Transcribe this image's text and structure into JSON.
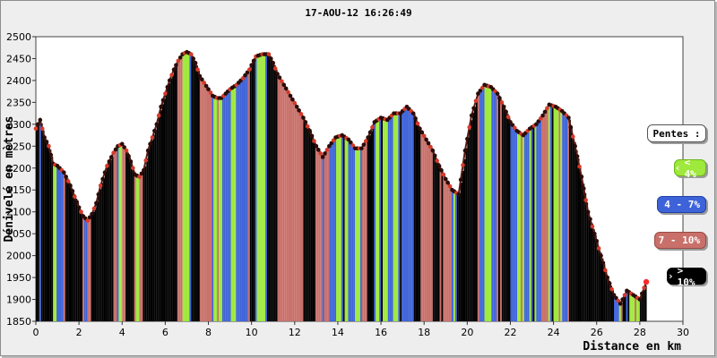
{
  "chart_data": {
    "type": "area",
    "title": "17-AOU-12 16:26:49",
    "xlabel": "Distance en km",
    "ylabel": "Dénivelé en mètres",
    "xlim": [
      0,
      30
    ],
    "ylim": [
      1850,
      2500
    ],
    "xticks": [
      0,
      2,
      4,
      6,
      8,
      10,
      12,
      14,
      16,
      18,
      20,
      22,
      24,
      26,
      28,
      30
    ],
    "yticks": [
      1850,
      1900,
      1950,
      2000,
      2050,
      2100,
      2150,
      2200,
      2250,
      2300,
      2350,
      2400,
      2450,
      2500
    ],
    "grid": false,
    "legend_placement": "right",
    "series": [
      {
        "x": [
          0,
          0.2,
          0.4,
          0.6,
          0.8,
          1.0,
          1.3,
          1.6,
          2.0,
          2.2,
          2.4,
          2.6,
          2.8,
          3.0,
          3.3,
          3.6,
          3.8,
          4.0,
          4.2,
          4.4,
          4.6,
          4.8,
          5.0,
          5.2,
          5.4,
          5.6,
          5.8,
          6.0,
          6.2,
          6.4,
          6.6,
          6.8,
          7.0,
          7.2,
          7.4,
          7.6,
          7.8,
          8.0,
          8.2,
          8.4,
          8.6,
          8.8,
          9.0,
          9.3,
          9.6,
          9.9,
          10.2,
          10.5,
          10.8,
          11.0,
          11.2,
          11.5,
          11.8,
          12.1,
          12.4,
          12.7,
          13.0,
          13.3,
          13.6,
          13.9,
          14.2,
          14.5,
          14.8,
          15.1,
          15.4,
          15.7,
          16.0,
          16.3,
          16.6,
          16.9,
          17.2,
          17.5,
          17.8,
          18.1,
          18.4,
          18.7,
          19.0,
          19.3,
          19.6,
          19.9,
          20.2,
          20.5,
          20.8,
          21.1,
          21.4,
          21.7,
          22.0,
          22.3,
          22.6,
          22.9,
          23.2,
          23.5,
          23.8,
          24.1,
          24.4,
          24.7,
          25.0,
          25.3,
          25.6,
          25.9,
          26.2,
          26.5,
          26.8,
          27.1,
          27.4,
          27.7,
          28.0,
          28.3
        ],
        "y": [
          2290,
          2310,
          2270,
          2250,
          2210,
          2205,
          2190,
          2160,
          2110,
          2090,
          2080,
          2095,
          2120,
          2160,
          2205,
          2235,
          2250,
          2255,
          2240,
          2215,
          2185,
          2180,
          2195,
          2240,
          2270,
          2300,
          2340,
          2370,
          2400,
          2425,
          2445,
          2460,
          2465,
          2460,
          2440,
          2410,
          2395,
          2380,
          2365,
          2360,
          2360,
          2370,
          2380,
          2390,
          2405,
          2425,
          2455,
          2460,
          2460,
          2440,
          2415,
          2390,
          2365,
          2340,
          2315,
          2285,
          2250,
          2225,
          2250,
          2270,
          2275,
          2265,
          2245,
          2245,
          2270,
          2305,
          2315,
          2310,
          2325,
          2325,
          2340,
          2325,
          2290,
          2265,
          2240,
          2205,
          2175,
          2150,
          2140,
          2240,
          2320,
          2370,
          2390,
          2385,
          2370,
          2340,
          2305,
          2285,
          2275,
          2290,
          2300,
          2320,
          2345,
          2340,
          2330,
          2315,
          2250,
          2180,
          2100,
          2050,
          2000,
          1950,
          1910,
          1890,
          1920,
          1910,
          1900,
          1940
        ]
      }
    ],
    "legend": {
      "title": "Pentes :",
      "items": [
        {
          "label": "< 4%",
          "color": "#9fe93c"
        },
        {
          "label": "4 - 7%",
          "color": "#3e63d9"
        },
        {
          "label": "7 - 10%",
          "color": "#c9706a"
        },
        {
          "label": "> 10%",
          "color": "#000000"
        }
      ]
    },
    "colors": {
      "plot_background": "#ffffff",
      "frame_background": "#eeeeee",
      "bar_green": "#9fe93c",
      "bar_blue": "#3e63d9",
      "bar_red": "#c9706a",
      "bar_black": "#000000",
      "marker": "#d63a2a"
    }
  }
}
